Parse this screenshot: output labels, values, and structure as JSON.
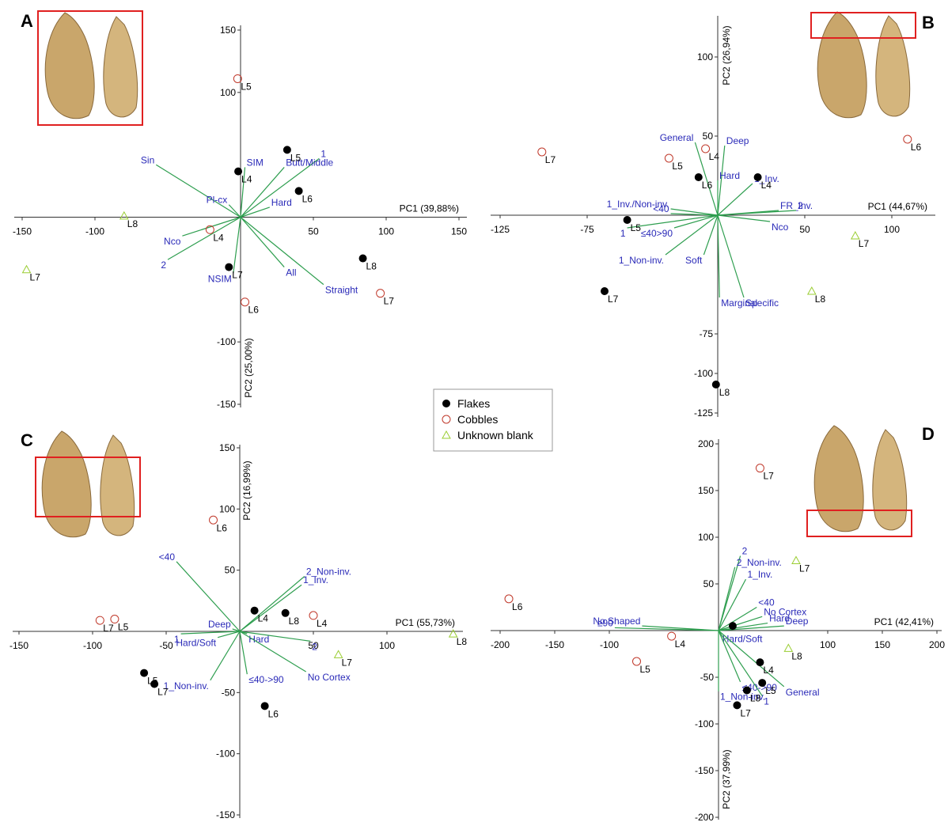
{
  "legend": [
    {
      "name": "Flakes",
      "color": "#000000",
      "marker": "filled-circle"
    },
    {
      "name": "Cobbles",
      "color": "#c0392b",
      "marker": "open-circle"
    },
    {
      "name": "Unknown blank",
      "color": "#9acd32",
      "marker": "open-triangle"
    }
  ],
  "vector_color": "#2e9e4f",
  "vector_label_color": "#2a2ab8",
  "chart_data": [
    {
      "type": "scatter",
      "panel": "A",
      "x_label": "PC1 (39,88%)",
      "y_label": "PC2 (25,00%)",
      "xlim": [
        -150,
        150
      ],
      "ylim": [
        -150,
        150
      ],
      "xticks": [
        -150,
        -100,
        50,
        100,
        150
      ],
      "yticks": [
        150,
        100,
        -100,
        -150
      ],
      "series": [
        {
          "x": [
            -1.6,
            32,
            40,
            -8,
            84
          ],
          "values": [
            36.7,
            54,
            21,
            -40,
            -33
          ],
          "labels": [
            "L4",
            "L5",
            "L6",
            "L7",
            "L8"
          ]
        },
        {
          "x": [
            -2,
            -21,
            3,
            96
          ],
          "values": [
            111,
            -10,
            -68,
            -61
          ],
          "labels": [
            "L5",
            "L4",
            "L6",
            "L7"
          ]
        },
        {
          "x": [
            -80,
            -147
          ],
          "values": [
            1,
            -42
          ],
          "labels": [
            "L8",
            "L7"
          ]
        }
      ],
      "vectors": [
        {
          "label": "Sin",
          "x": -58,
          "y": 42
        },
        {
          "label": "SIM",
          "x": 3,
          "y": 40
        },
        {
          "label": "1",
          "x": 54,
          "y": 47
        },
        {
          "label": "Butt/Middle",
          "x": 30,
          "y": 40
        },
        {
          "label": "Pl-cx",
          "x": -8,
          "y": 10
        },
        {
          "label": "Hard",
          "x": 20,
          "y": 8
        },
        {
          "label": "Nco",
          "x": -40,
          "y": -15
        },
        {
          "label": "2",
          "x": -50,
          "y": -34
        },
        {
          "label": "All",
          "x": 30,
          "y": -40
        },
        {
          "label": "Straight",
          "x": 57,
          "y": -54
        },
        {
          "label": "NSIM",
          "x": -5,
          "y": -45
        }
      ]
    },
    {
      "type": "scatter",
      "panel": "B",
      "x_label": "PC1 (44,67%)",
      "y_label": "PC2 (26,94%)",
      "xlim": [
        -125,
        125
      ],
      "ylim": [
        -125,
        125
      ],
      "xticks": [
        -125,
        -75,
        50,
        100
      ],
      "yticks": [
        100,
        50,
        -75,
        -100,
        -125
      ],
      "series": [
        {
          "x": [
            -11,
            23,
            -52,
            -65,
            -1
          ],
          "values": [
            24,
            24,
            -3,
            -48,
            -107
          ],
          "labels": [
            "L6",
            "L4",
            "L5",
            "L7",
            "L8"
          ]
        },
        {
          "x": [
            -101,
            -28,
            -7,
            109
          ],
          "values": [
            40,
            36,
            42,
            48
          ],
          "labels": [
            "L7",
            "L5",
            "L4",
            "L6"
          ]
        },
        {
          "x": [
            79,
            54
          ],
          "values": [
            -13,
            -48
          ],
          "labels": [
            "L7",
            "L8"
          ]
        }
      ],
      "vectors": [
        {
          "label": "General",
          "x": -13,
          "y": 46
        },
        {
          "label": "Deep",
          "x": 4,
          "y": 44
        },
        {
          "label": "Hard",
          "x": 0,
          "y": 22
        },
        {
          "label": "1_Inv.",
          "x": 20,
          "y": 20
        },
        {
          "label": "1_Inv./Non-inv.",
          "x": -27,
          "y": 4
        },
        {
          "label": "FR_Inv.",
          "x": 35,
          "y": 3
        },
        {
          "label": "2",
          "x": 45,
          "y": 3
        },
        {
          "label": "<40",
          "x": -27,
          "y": 1
        },
        {
          "label": "Nco",
          "x": 30,
          "y": -4
        },
        {
          "label": "≤40>90",
          "x": -25,
          "y": -8
        },
        {
          "label": "1",
          "x": -52,
          "y": -8
        },
        {
          "label": "1_Non-inv.",
          "x": -30,
          "y": -25
        },
        {
          "label": "Soft",
          "x": -8,
          "y": -25
        },
        {
          "label": "Marginal",
          "x": 1,
          "y": -52
        },
        {
          "label": "Specific",
          "x": 15,
          "y": -52
        }
      ]
    },
    {
      "type": "scatter",
      "panel": "C",
      "x_label": "PC1 (55,73%)",
      "y_label": "PC2 (16,99%)",
      "xlim": [
        -150,
        150
      ],
      "ylim": [
        -150,
        150
      ],
      "xticks": [
        -150,
        -100,
        -50,
        50,
        100
      ],
      "yticks": [
        150,
        100,
        50,
        -50,
        -100,
        -150
      ],
      "series": [
        {
          "x": [
            10,
            31,
            -65,
            -58,
            17
          ],
          "values": [
            17,
            15,
            -34,
            -43,
            -61
          ],
          "labels": [
            "L4",
            "L8",
            "L5",
            "L7",
            "L6"
          ]
        },
        {
          "x": [
            -18,
            -95,
            -85,
            50
          ],
          "values": [
            91,
            9,
            10,
            13
          ],
          "labels": [
            "L6",
            "L7",
            "L5",
            "L4"
          ]
        },
        {
          "x": [
            67,
            145
          ],
          "values": [
            -19,
            -2
          ],
          "labels": [
            "L7",
            "L8"
          ]
        }
      ],
      "vectors": [
        {
          "label": "<40",
          "x": -43,
          "y": 57
        },
        {
          "label": "2_Non-inv.",
          "x": 44,
          "y": 45
        },
        {
          "label": "1_Inv.",
          "x": 42,
          "y": 38
        },
        {
          "label": "Deep",
          "x": -5,
          "y": 2
        },
        {
          "label": "Hard",
          "x": 5,
          "y": -2
        },
        {
          "label": "1",
          "x": -40,
          "y": -2
        },
        {
          "label": "Hard/Soft",
          "x": -15,
          "y": -5
        },
        {
          "label": "2",
          "x": 48,
          "y": -8
        },
        {
          "label": "≤40->90",
          "x": 5,
          "y": -35
        },
        {
          "label": "No Cortex",
          "x": 45,
          "y": -33
        },
        {
          "label": "1_Non-inv.",
          "x": -20,
          "y": -40
        }
      ]
    },
    {
      "type": "scatter",
      "panel": "D",
      "x_label": "PC1 (42,41%)",
      "y_label": "PC2 (37,99%)",
      "xlim": [
        -200,
        200
      ],
      "ylim": [
        -200,
        200
      ],
      "xticks": [
        -200,
        -150,
        -100,
        100,
        150,
        200
      ],
      "yticks": [
        200,
        150,
        100,
        50,
        -50,
        -100,
        -150,
        -200
      ],
      "series": [
        {
          "x": [
            13,
            38,
            40,
            26,
            17
          ],
          "values": [
            5,
            -34,
            -56,
            -64,
            -80
          ],
          "labels": [
            null,
            "L4",
            "L5",
            "L8",
            "L7"
          ]
        },
        {
          "x": [
            38,
            -192,
            -43,
            -75
          ],
          "values": [
            174,
            34,
            -6,
            -33
          ],
          "labels": [
            "L7",
            "L6",
            "L4",
            "L5"
          ]
        },
        {
          "x": [
            71,
            64
          ],
          "values": [
            75,
            -19
          ],
          "labels": [
            "L7",
            "L8"
          ]
        }
      ],
      "vectors": [
        {
          "label": "2",
          "x": 20,
          "y": 80
        },
        {
          "label": "2_Non-inv.",
          "x": 15,
          "y": 68
        },
        {
          "label": "1_Inv.",
          "x": 25,
          "y": 55
        },
        {
          "label": "<40",
          "x": 35,
          "y": 25
        },
        {
          "label": "No Cortex",
          "x": 40,
          "y": 15
        },
        {
          "label": "Hard",
          "x": 45,
          "y": 8
        },
        {
          "label": "Deep",
          "x": 60,
          "y": 5
        },
        {
          "label": "≥90",
          "x": -95,
          "y": 3
        },
        {
          "label": "No Shaped",
          "x": -70,
          "y": 5
        },
        {
          "label": "Hard/Soft",
          "x": 2,
          "y": -3
        },
        {
          "label": "≤40->90",
          "x": 20,
          "y": -55
        },
        {
          "label": "1_Non-inv.",
          "x": 0,
          "y": -65
        },
        {
          "label": "1",
          "x": 40,
          "y": -70
        },
        {
          "label": "General",
          "x": 60,
          "y": -60
        }
      ]
    }
  ]
}
